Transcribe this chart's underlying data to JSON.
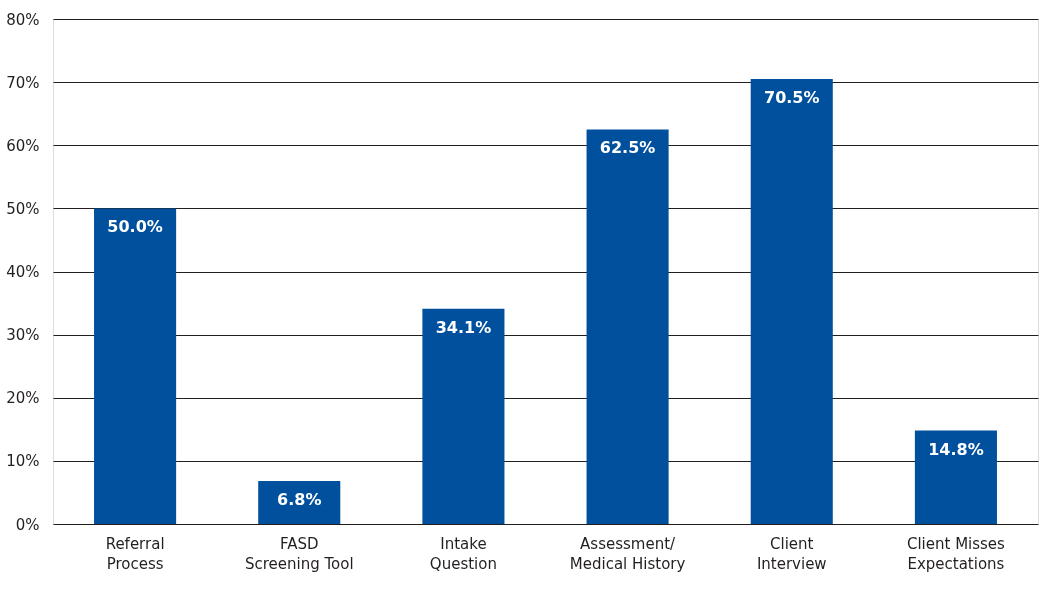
{
  "chart_data": {
    "type": "bar",
    "categories": [
      "Referral\nProcess",
      "FASD\nScreening Tool",
      "Intake\nQuestion",
      "Assessment/\nMedical History",
      "Client\nInterview",
      "Client Misses\nExpectations"
    ],
    "values": [
      50.0,
      6.8,
      34.1,
      62.5,
      70.5,
      14.8
    ],
    "value_labels": [
      "50.0%",
      "6.8%",
      "34.1%",
      "62.5%",
      "70.5%",
      "14.8%"
    ],
    "color": "#00509e",
    "ylim": [
      0,
      80
    ],
    "yticks": [
      {
        "value": 0,
        "label": "0%"
      },
      {
        "value": 10,
        "label": "10%"
      },
      {
        "value": 20,
        "label": "20%"
      },
      {
        "value": 30,
        "label": "30%"
      },
      {
        "value": 40,
        "label": "40%"
      },
      {
        "value": 50,
        "label": "50%"
      },
      {
        "value": 60,
        "label": "60%"
      },
      {
        "value": 70,
        "label": "70%"
      },
      {
        "value": 80,
        "label": "80%"
      }
    ],
    "grid": "y"
  }
}
